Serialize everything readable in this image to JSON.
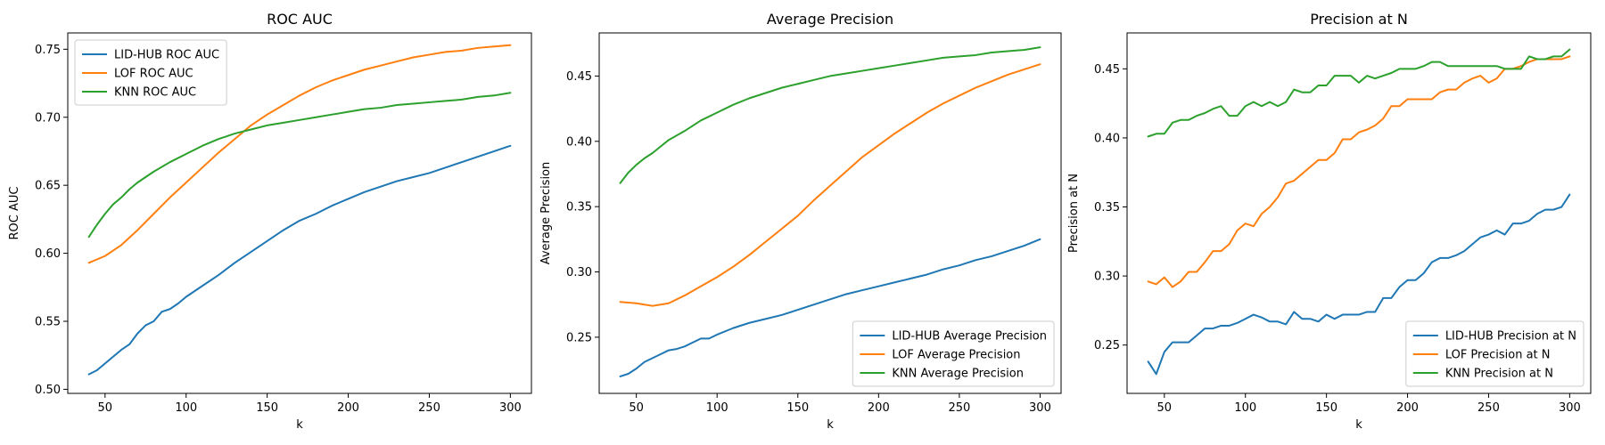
{
  "chart_data": [
    {
      "type": "line",
      "title": "ROC AUC",
      "xlabel": "k",
      "ylabel": "ROC AUC",
      "xlim": [
        27,
        313
      ],
      "ylim": [
        0.497,
        0.762
      ],
      "xticks": [
        50,
        100,
        150,
        200,
        250,
        300
      ],
      "yticks": [
        0.5,
        0.55,
        0.6,
        0.65,
        0.7,
        0.75
      ],
      "ytick_decimals": 2,
      "legend": "upper-left",
      "series": [
        {
          "name": "LID-HUB ROC AUC",
          "color": "#1f77b4",
          "x": [
            40,
            45,
            50,
            55,
            60,
            65,
            70,
            75,
            80,
            85,
            90,
            95,
            100,
            110,
            120,
            130,
            140,
            150,
            160,
            170,
            180,
            190,
            200,
            210,
            220,
            230,
            240,
            250,
            260,
            270,
            280,
            290,
            300
          ],
          "y": [
            0.511,
            0.514,
            0.519,
            0.524,
            0.529,
            0.533,
            0.541,
            0.547,
            0.55,
            0.557,
            0.559,
            0.563,
            0.568,
            0.576,
            0.584,
            0.593,
            0.601,
            0.609,
            0.617,
            0.624,
            0.629,
            0.635,
            0.64,
            0.645,
            0.649,
            0.653,
            0.656,
            0.659,
            0.663,
            0.667,
            0.671,
            0.675,
            0.679
          ]
        },
        {
          "name": "LOF ROC AUC",
          "color": "#ff7f0e",
          "x": [
            40,
            50,
            60,
            70,
            80,
            90,
            100,
            110,
            120,
            130,
            140,
            150,
            160,
            170,
            180,
            190,
            200,
            210,
            220,
            230,
            240,
            250,
            260,
            270,
            280,
            290,
            300
          ],
          "y": [
            0.593,
            0.598,
            0.606,
            0.617,
            0.629,
            0.641,
            0.652,
            0.663,
            0.674,
            0.684,
            0.694,
            0.702,
            0.709,
            0.716,
            0.722,
            0.727,
            0.731,
            0.735,
            0.738,
            0.741,
            0.744,
            0.746,
            0.748,
            0.749,
            0.751,
            0.752,
            0.753
          ]
        },
        {
          "name": "KNN ROC AUC",
          "color": "#2ca02c",
          "x": [
            40,
            45,
            50,
            55,
            60,
            65,
            70,
            80,
            90,
            100,
            110,
            120,
            130,
            140,
            150,
            160,
            170,
            180,
            190,
            200,
            210,
            220,
            230,
            240,
            250,
            260,
            270,
            280,
            290,
            300
          ],
          "y": [
            0.612,
            0.621,
            0.629,
            0.636,
            0.641,
            0.647,
            0.652,
            0.66,
            0.667,
            0.673,
            0.679,
            0.684,
            0.688,
            0.691,
            0.694,
            0.696,
            0.698,
            0.7,
            0.702,
            0.704,
            0.706,
            0.707,
            0.709,
            0.71,
            0.711,
            0.712,
            0.713,
            0.715,
            0.716,
            0.718
          ]
        }
      ]
    },
    {
      "type": "line",
      "title": "Average Precision",
      "xlabel": "k",
      "ylabel": "Average Precision",
      "xlim": [
        27,
        313
      ],
      "ylim": [
        0.207,
        0.483
      ],
      "xticks": [
        50,
        100,
        150,
        200,
        250,
        300
      ],
      "yticks": [
        0.25,
        0.3,
        0.35,
        0.4,
        0.45
      ],
      "ytick_decimals": 2,
      "legend": "lower-right",
      "series": [
        {
          "name": "LID-HUB Average Precision",
          "color": "#1f77b4",
          "x": [
            40,
            45,
            50,
            55,
            60,
            65,
            70,
            75,
            80,
            85,
            90,
            95,
            100,
            110,
            120,
            130,
            140,
            150,
            160,
            170,
            180,
            190,
            200,
            210,
            220,
            230,
            240,
            250,
            260,
            270,
            280,
            290,
            300
          ],
          "y": [
            0.22,
            0.222,
            0.226,
            0.231,
            0.234,
            0.237,
            0.24,
            0.241,
            0.243,
            0.246,
            0.249,
            0.249,
            0.252,
            0.257,
            0.261,
            0.264,
            0.267,
            0.271,
            0.275,
            0.279,
            0.283,
            0.286,
            0.289,
            0.292,
            0.295,
            0.298,
            0.302,
            0.305,
            0.309,
            0.312,
            0.316,
            0.32,
            0.325
          ]
        },
        {
          "name": "LOF Average Precision",
          "color": "#ff7f0e",
          "x": [
            40,
            50,
            55,
            60,
            65,
            70,
            80,
            90,
            100,
            110,
            120,
            130,
            140,
            150,
            160,
            170,
            180,
            190,
            200,
            210,
            220,
            230,
            240,
            250,
            260,
            270,
            280,
            290,
            300
          ],
          "y": [
            0.277,
            0.276,
            0.275,
            0.274,
            0.275,
            0.276,
            0.282,
            0.289,
            0.296,
            0.304,
            0.313,
            0.323,
            0.333,
            0.343,
            0.355,
            0.366,
            0.377,
            0.388,
            0.397,
            0.406,
            0.414,
            0.422,
            0.429,
            0.435,
            0.441,
            0.446,
            0.451,
            0.455,
            0.459
          ]
        },
        {
          "name": "KNN Average Precision",
          "color": "#2ca02c",
          "x": [
            40,
            45,
            50,
            55,
            60,
            65,
            70,
            80,
            90,
            100,
            110,
            120,
            130,
            140,
            150,
            160,
            170,
            180,
            190,
            200,
            210,
            220,
            230,
            240,
            250,
            260,
            270,
            280,
            290,
            300
          ],
          "y": [
            0.368,
            0.376,
            0.382,
            0.387,
            0.391,
            0.396,
            0.401,
            0.408,
            0.416,
            0.422,
            0.428,
            0.433,
            0.437,
            0.441,
            0.444,
            0.447,
            0.45,
            0.452,
            0.454,
            0.456,
            0.458,
            0.46,
            0.462,
            0.464,
            0.465,
            0.466,
            0.468,
            0.469,
            0.47,
            0.472
          ]
        }
      ]
    },
    {
      "type": "line",
      "title": "Precision at N",
      "xlabel": "k",
      "ylabel": "Precision at N",
      "xlim": [
        27,
        313
      ],
      "ylim": [
        0.215,
        0.476
      ],
      "xticks": [
        50,
        100,
        150,
        200,
        250,
        300
      ],
      "yticks": [
        0.25,
        0.3,
        0.35,
        0.4,
        0.45
      ],
      "ytick_decimals": 2,
      "legend": "lower-right",
      "series": [
        {
          "name": "LID-HUB Precision at N",
          "color": "#1f77b4",
          "x": [
            40,
            45,
            50,
            55,
            60,
            65,
            70,
            75,
            80,
            85,
            90,
            95,
            100,
            105,
            110,
            115,
            120,
            125,
            130,
            135,
            140,
            145,
            150,
            155,
            160,
            165,
            170,
            175,
            180,
            185,
            190,
            195,
            200,
            205,
            210,
            215,
            220,
            225,
            230,
            235,
            240,
            245,
            250,
            255,
            260,
            265,
            270,
            275,
            280,
            285,
            290,
            295,
            300
          ],
          "y": [
            0.238,
            0.229,
            0.245,
            0.252,
            0.252,
            0.252,
            0.257,
            0.262,
            0.262,
            0.264,
            0.264,
            0.266,
            0.269,
            0.272,
            0.27,
            0.267,
            0.267,
            0.265,
            0.274,
            0.269,
            0.269,
            0.267,
            0.272,
            0.269,
            0.272,
            0.272,
            0.272,
            0.274,
            0.274,
            0.284,
            0.284,
            0.292,
            0.297,
            0.297,
            0.302,
            0.31,
            0.313,
            0.313,
            0.315,
            0.318,
            0.323,
            0.328,
            0.33,
            0.333,
            0.33,
            0.338,
            0.338,
            0.34,
            0.345,
            0.348,
            0.348,
            0.35,
            0.359
          ]
        },
        {
          "name": "LOF Precision at N",
          "color": "#ff7f0e",
          "x": [
            40,
            45,
            50,
            55,
            60,
            65,
            70,
            75,
            80,
            85,
            90,
            95,
            100,
            105,
            110,
            115,
            120,
            125,
            130,
            135,
            140,
            145,
            150,
            155,
            160,
            165,
            170,
            175,
            180,
            185,
            190,
            195,
            200,
            205,
            210,
            215,
            220,
            225,
            230,
            235,
            240,
            245,
            250,
            255,
            260,
            265,
            270,
            275,
            280,
            285,
            290,
            295,
            300
          ],
          "y": [
            0.296,
            0.294,
            0.299,
            0.292,
            0.296,
            0.303,
            0.303,
            0.31,
            0.318,
            0.318,
            0.323,
            0.333,
            0.338,
            0.336,
            0.345,
            0.35,
            0.357,
            0.367,
            0.369,
            0.374,
            0.379,
            0.384,
            0.384,
            0.389,
            0.399,
            0.399,
            0.404,
            0.406,
            0.409,
            0.414,
            0.423,
            0.423,
            0.428,
            0.428,
            0.428,
            0.428,
            0.433,
            0.435,
            0.435,
            0.44,
            0.443,
            0.445,
            0.44,
            0.443,
            0.45,
            0.45,
            0.452,
            0.455,
            0.457,
            0.457,
            0.457,
            0.457,
            0.459
          ]
        },
        {
          "name": "KNN Precision at N",
          "color": "#2ca02c",
          "x": [
            40,
            45,
            50,
            55,
            60,
            65,
            70,
            75,
            80,
            85,
            90,
            95,
            100,
            105,
            110,
            115,
            120,
            125,
            130,
            135,
            140,
            145,
            150,
            155,
            160,
            165,
            170,
            175,
            180,
            185,
            190,
            195,
            200,
            205,
            210,
            215,
            220,
            225,
            230,
            235,
            240,
            245,
            250,
            255,
            260,
            265,
            270,
            275,
            280,
            285,
            290,
            295,
            300
          ],
          "y": [
            0.401,
            0.403,
            0.403,
            0.411,
            0.413,
            0.413,
            0.416,
            0.418,
            0.421,
            0.423,
            0.416,
            0.416,
            0.423,
            0.426,
            0.423,
            0.426,
            0.423,
            0.426,
            0.435,
            0.433,
            0.433,
            0.438,
            0.438,
            0.445,
            0.445,
            0.445,
            0.44,
            0.445,
            0.443,
            0.445,
            0.447,
            0.45,
            0.45,
            0.45,
            0.452,
            0.455,
            0.455,
            0.452,
            0.452,
            0.452,
            0.452,
            0.452,
            0.452,
            0.452,
            0.45,
            0.45,
            0.45,
            0.459,
            0.457,
            0.457,
            0.459,
            0.459,
            0.464
          ]
        }
      ]
    }
  ]
}
